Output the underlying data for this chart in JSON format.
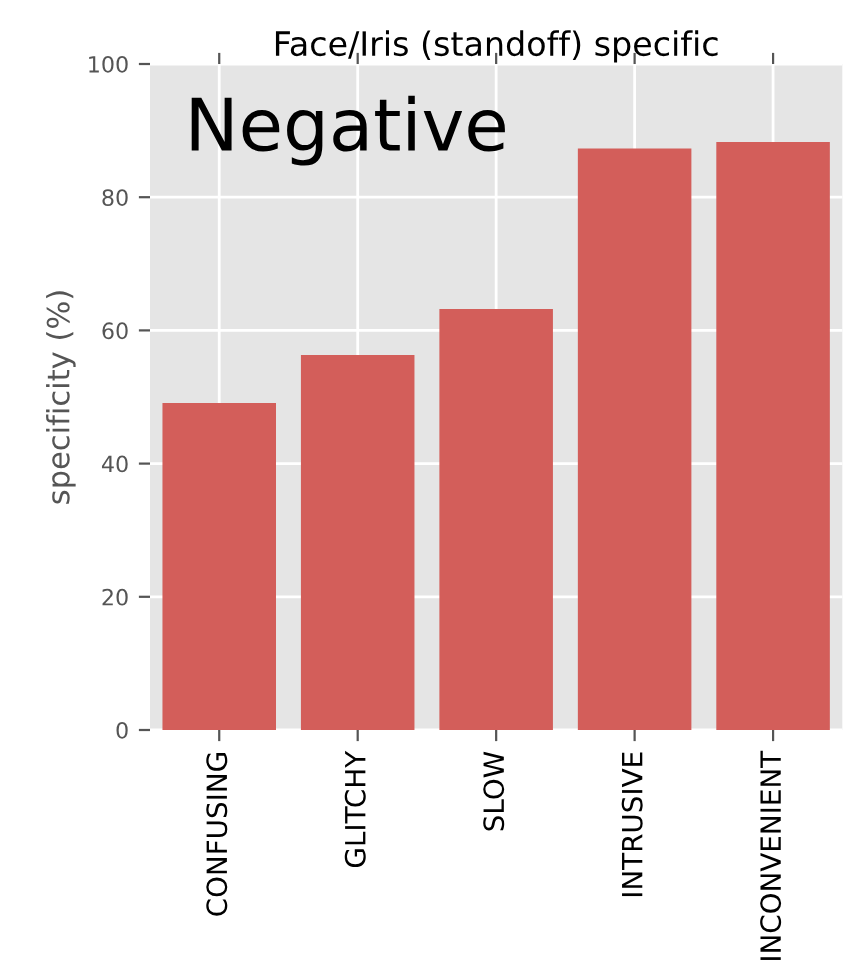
{
  "chart_data": {
    "type": "bar",
    "title": "Face/Iris (standoff) specific",
    "ylabel": "specificity (%)",
    "annotations": [
      "Negative"
    ],
    "categories": [
      "CONFUSING",
      "GLITCHY",
      "SLOW",
      "INTRUSIVE",
      "INCONVENIENT"
    ],
    "values": [
      49.1,
      56.3,
      63.2,
      87.3,
      88.3
    ],
    "color": "#d35e5a",
    "ylim": [
      0,
      100
    ],
    "yticks": [
      0,
      20,
      40,
      60,
      80,
      100
    ],
    "grid": true
  }
}
